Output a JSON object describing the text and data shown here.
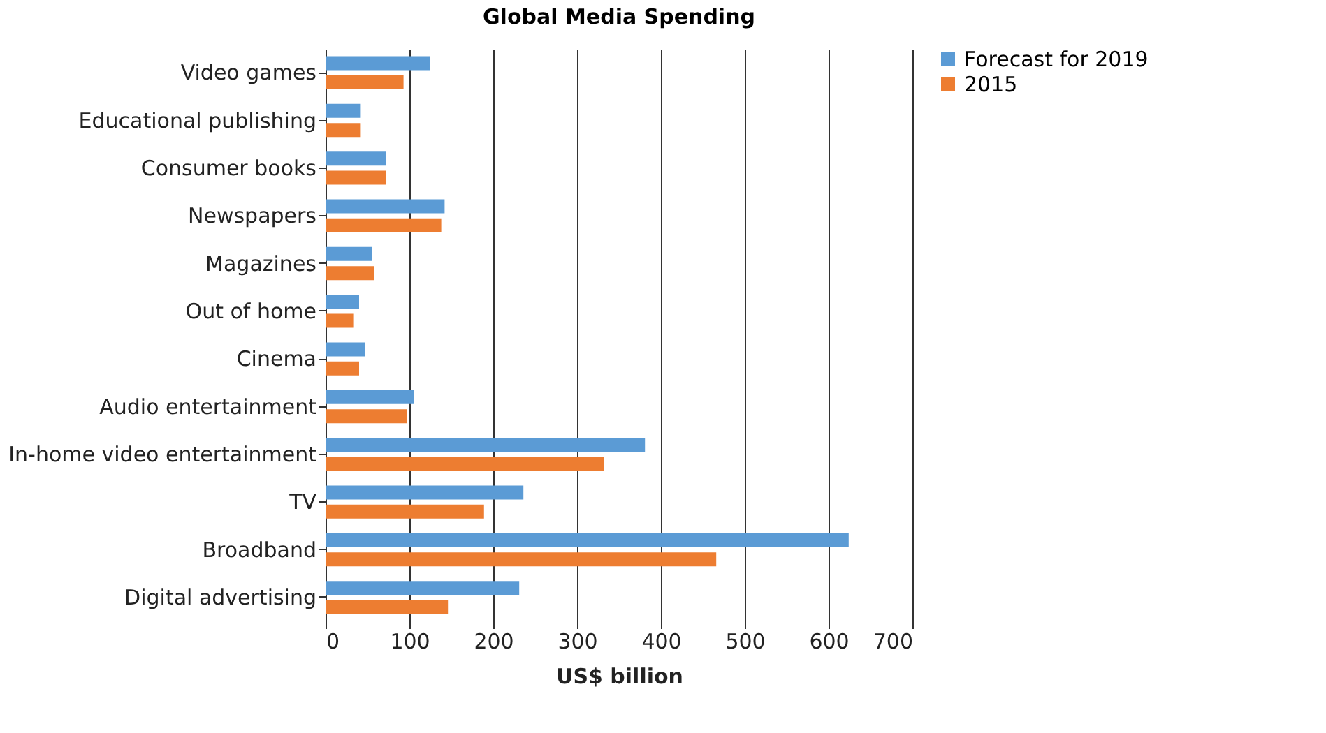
{
  "chart_data": {
    "type": "bar",
    "orientation": "horizontal",
    "title": "Global Media Spending",
    "xlabel": "US$ billion",
    "categories": [
      "Video games",
      "Educational publishing",
      "Consumer books",
      "Newspapers",
      "Magazines",
      "Out of home",
      "Cinema",
      "Audio entertainment",
      "In-home video entertainment",
      "TV",
      "Broadband",
      "Digital advertising"
    ],
    "series": [
      {
        "name": "Forecast for 2019",
        "color": "#5b9bd5",
        "values": [
          125,
          42,
          72,
          142,
          55,
          40,
          47,
          105,
          381,
          236,
          624,
          231
        ]
      },
      {
        "name": "2015",
        "color": "#ed7d31",
        "values": [
          93,
          42,
          72,
          138,
          58,
          33,
          40,
          97,
          332,
          189,
          466,
          146
        ]
      }
    ],
    "xlim": [
      0,
      700
    ],
    "xticks": [
      0,
      100,
      200,
      300,
      400,
      500,
      600,
      700
    ],
    "grid": "x",
    "legend": "right"
  }
}
